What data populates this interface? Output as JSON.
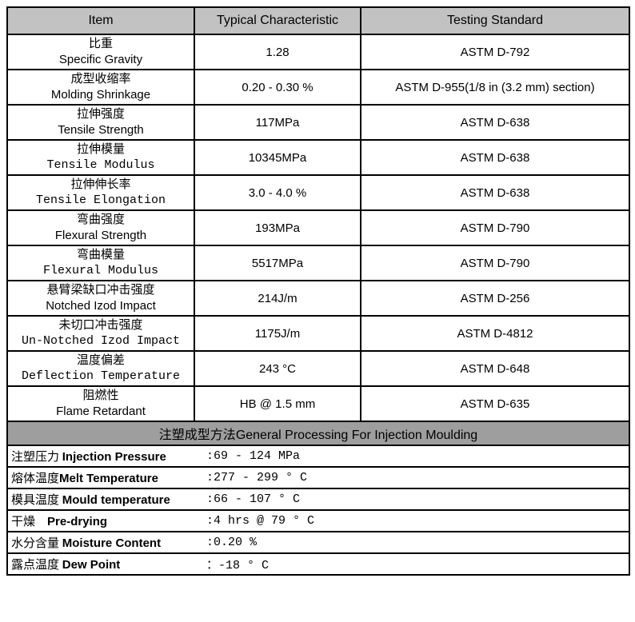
{
  "colors": {
    "header_bg": "#c2c2c2",
    "section_bg": "#9e9e9e",
    "border": "#000000",
    "text": "#000000",
    "page_bg": "#ffffff"
  },
  "table": {
    "headers": [
      "Item",
      "Typical Characteristic",
      "Testing Standard"
    ],
    "rows": [
      {
        "cn": "比重",
        "en": "Specific Gravity",
        "en_style": "sans",
        "value": "1.28",
        "standard": "ASTM D-792"
      },
      {
        "cn": "成型收缩率",
        "en": "Molding Shrinkage",
        "en_style": "sans",
        "value": "0.20 - 0.30 %",
        "standard": "ASTM D-955(1/8 in (3.2 mm) section)"
      },
      {
        "cn": "拉伸强度",
        "en": "Tensile Strength",
        "en_style": "sans",
        "value": "117MPa",
        "standard": "ASTM D-638"
      },
      {
        "cn": "拉伸模量",
        "en": "Tensile Modulus",
        "en_style": "mono",
        "value": "10345MPa",
        "standard": "ASTM D-638"
      },
      {
        "cn": "拉伸伸长率",
        "en": "Tensile Elongation",
        "en_style": "mono",
        "value": "3.0 - 4.0 %",
        "standard": "ASTM D-638"
      },
      {
        "cn": "弯曲强度",
        "en": "Flexural Strength",
        "en_style": "sans",
        "value": "193MPa",
        "standard": "ASTM D-790"
      },
      {
        "cn": "弯曲模量",
        "en": "Flexural Modulus",
        "en_style": "mono",
        "value": "5517MPa",
        "standard": "ASTM D-790"
      },
      {
        "cn": "悬臂梁缺口冲击强度",
        "en": "Notched Izod Impact",
        "en_style": "sans",
        "value": "214J/m",
        "standard": "ASTM D-256"
      },
      {
        "cn": "未切口冲击强度",
        "en": "Un-Notched Izod Impact",
        "en_style": "mono",
        "value": "1175J/m",
        "standard": "ASTM D-4812"
      },
      {
        "cn": "温度偏差",
        "en": "Deflection Temperature",
        "en_style": "mono",
        "value": "243 °C",
        "standard": "ASTM D-648"
      },
      {
        "cn": "阻燃性",
        "en": "Flame Retardant",
        "en_style": "sans",
        "value": "HB @ 1.5 mm",
        "standard": "ASTM D-635"
      }
    ]
  },
  "processing": {
    "header_cn": "注塑成型方法",
    "header_en": "General Processing For Injection Moulding",
    "rows": [
      {
        "cn": "注塑压力 ",
        "en": "Injection Pressure",
        "value": ":69 - 124 MPa"
      },
      {
        "cn": "熔体温度",
        "en": "Melt Temperature",
        "value": ":277 - 299 ° C"
      },
      {
        "cn": "模具温度 ",
        "en": "Mould temperature",
        "value": ":66 - 107 ° C"
      },
      {
        "cn": "干燥    ",
        "en": "Pre-drying",
        "value": ":4 hrs @ 79 ° C"
      },
      {
        "cn": "水分含量 ",
        "en": "Moisture Content",
        "value": ":0.20 %"
      },
      {
        "cn": "露点温度 ",
        "en": "Dew Point",
        "value": "：-18 ° C"
      }
    ]
  }
}
